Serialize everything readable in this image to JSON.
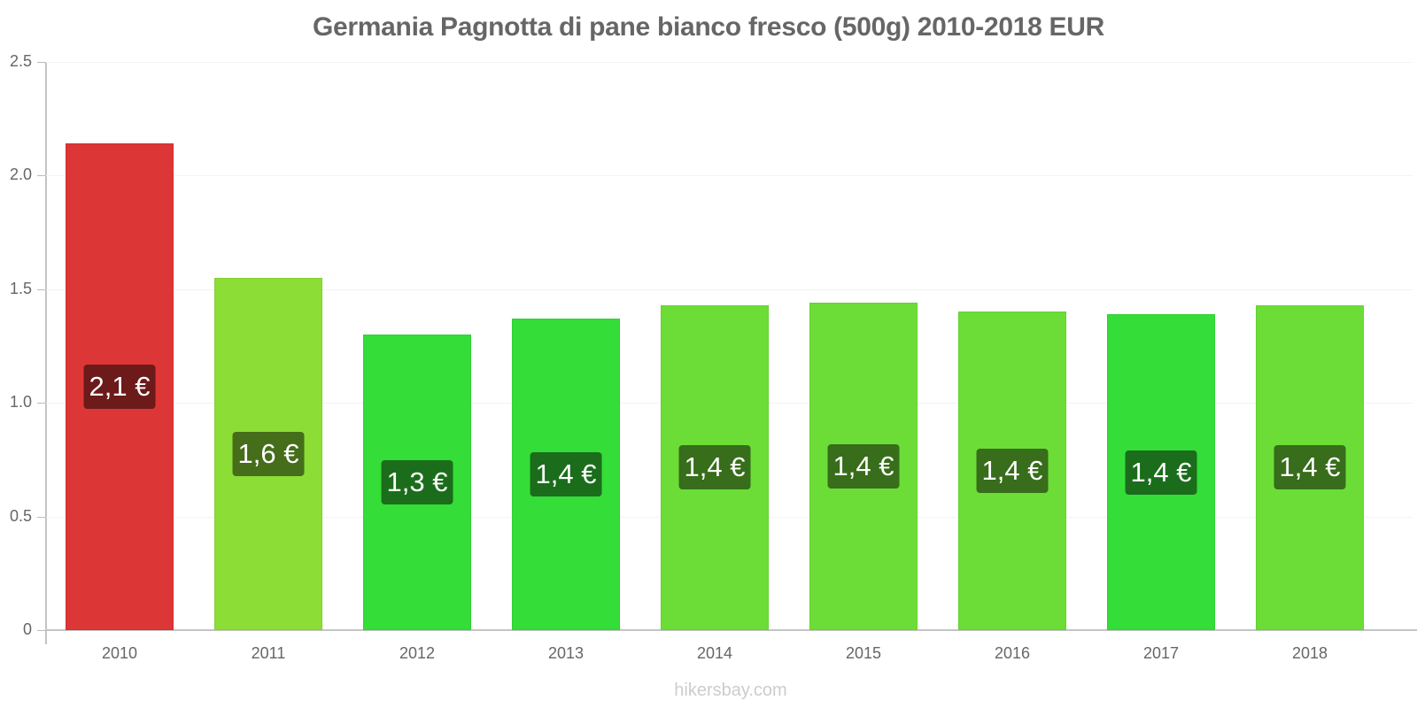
{
  "chart_data": {
    "type": "bar",
    "title": "Germania Pagnotta di pane bianco fresco (500g) 2010-2018 EUR",
    "xlabel": "",
    "ylabel": "",
    "ylim": [
      0,
      2.5
    ],
    "yticks": [
      "0",
      "0.5",
      "1.0",
      "1.5",
      "2.0",
      "2.5"
    ],
    "grid": true,
    "legend": null,
    "categories": [
      "2010",
      "2011",
      "2012",
      "2013",
      "2014",
      "2015",
      "2016",
      "2017",
      "2018"
    ],
    "values": [
      2.14,
      1.55,
      1.3,
      1.37,
      1.43,
      1.44,
      1.4,
      1.39,
      1.43
    ],
    "data_labels": [
      "2,1 €",
      "1,6 €",
      "1,3 €",
      "1,4 €",
      "1,4 €",
      "1,4 €",
      "1,4 €",
      "1,4 €",
      "1,4 €"
    ],
    "bar_colors": [
      "#dc3636",
      "#8cdd36",
      "#34dd38",
      "#34dd38",
      "#6cdd36",
      "#6cdd36",
      "#6cdd36",
      "#34dd38",
      "#6cdd36"
    ],
    "label_colors": [
      "#6c1a1a",
      "#456d1a",
      "#1b6d1c",
      "#1b6d1c",
      "#376d1b",
      "#376d1b",
      "#376d1b",
      "#1b6d1c",
      "#376d1b"
    ]
  },
  "footer": {
    "source": "hikersbay.com"
  }
}
